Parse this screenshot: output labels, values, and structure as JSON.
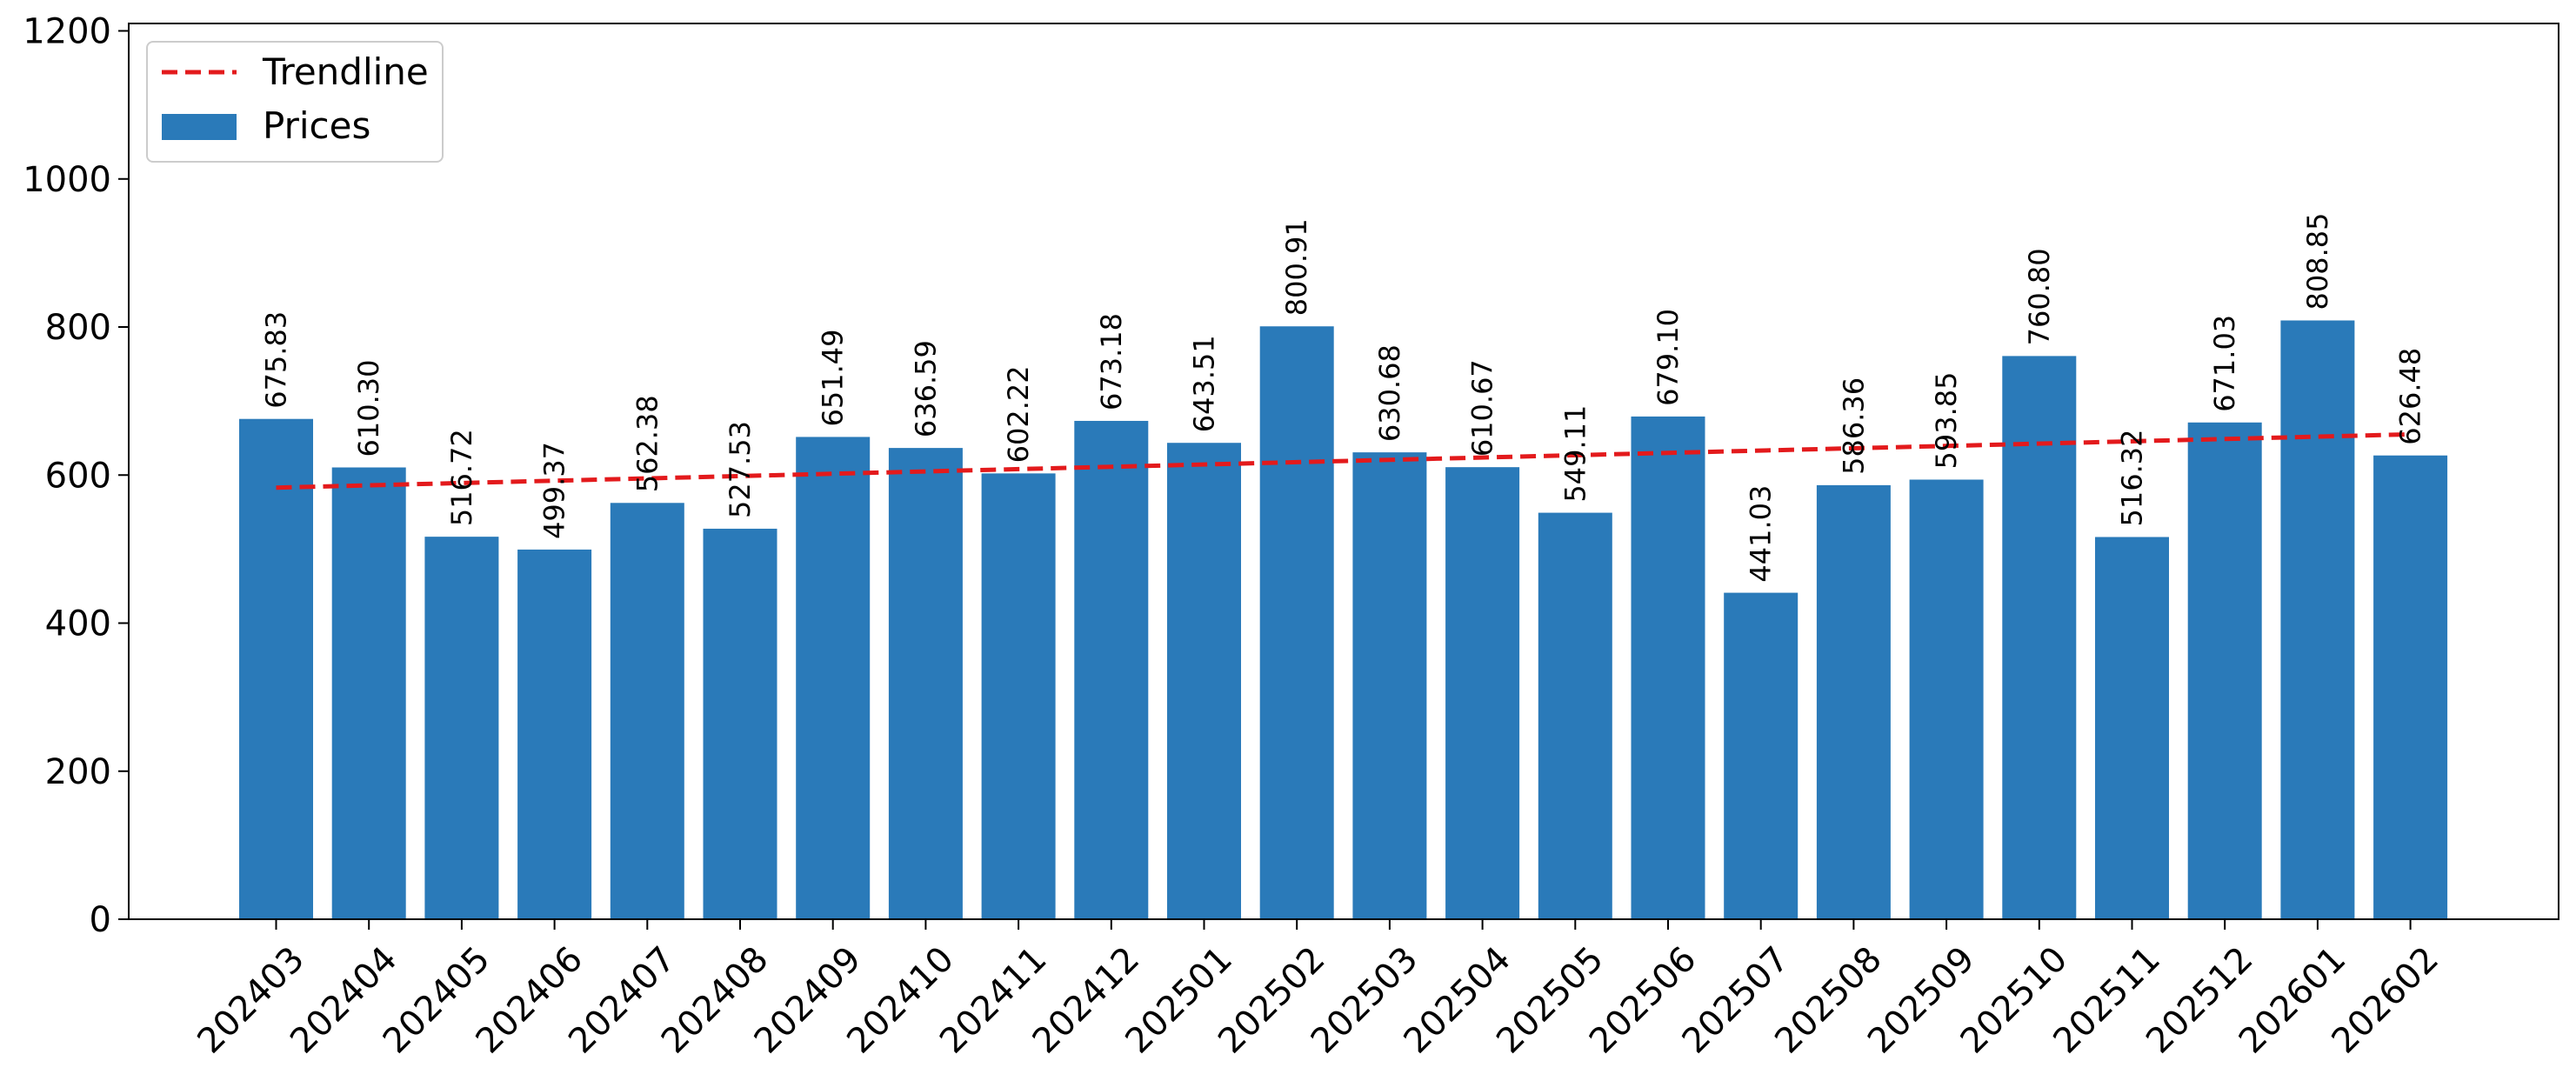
{
  "chart_data": {
    "type": "bar",
    "categories": [
      "202403",
      "202404",
      "202405",
      "202406",
      "202407",
      "202408",
      "202409",
      "202410",
      "202411",
      "202412",
      "202501",
      "202502",
      "202503",
      "202504",
      "202505",
      "202506",
      "202507",
      "202508",
      "202509",
      "202510",
      "202511",
      "202512",
      "202601",
      "202602"
    ],
    "series": [
      {
        "name": "Prices",
        "type": "bar",
        "color": "#2a7ab9",
        "values": [
          675.83,
          610.3,
          516.72,
          499.37,
          562.38,
          527.53,
          651.49,
          636.59,
          602.22,
          673.18,
          643.51,
          800.91,
          630.68,
          610.67,
          549.11,
          679.1,
          441.03,
          586.36,
          593.85,
          760.8,
          516.32,
          671.03,
          808.85,
          626.48
        ],
        "value_labels": [
          "675.83",
          "610.30",
          "516.72",
          "499.37",
          "562.38",
          "527.53",
          "651.49",
          "636.59",
          "602.22",
          "673.18",
          "643.51",
          "800.91",
          "630.68",
          "610.67",
          "549.11",
          "679.10",
          "441.03",
          "586.36",
          "593.85",
          "760.80",
          "516.32",
          "671.03",
          "808.85",
          "626.48"
        ]
      },
      {
        "name": "Trendline",
        "type": "line",
        "style": "dashed",
        "color": "#e31a1c",
        "start": 583,
        "end": 655
      }
    ],
    "ylim": [
      0,
      1210
    ],
    "yticks": [
      0,
      200,
      400,
      600,
      800,
      1000,
      1200
    ],
    "ytick_labels": [
      "0",
      "200",
      "400",
      "600",
      "800",
      "1000",
      "1200"
    ],
    "legend": {
      "placement": "top-left",
      "entries": [
        "Trendline",
        "Prices"
      ]
    },
    "grid": false,
    "xlabel": "",
    "ylabel": "",
    "title": ""
  }
}
